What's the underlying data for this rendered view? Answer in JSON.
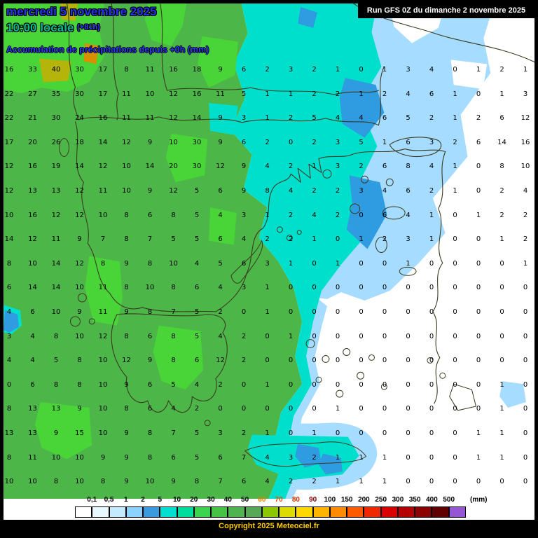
{
  "header": {
    "date_line": "mercredi 5 novembre 2025",
    "time_line": "10:00 locale",
    "time_offset": "(+81h)",
    "subtitle": "Accumulation de précipitations depuis +0h (mm)",
    "run_info": "Run GFS 0Z du dimanche 2 novembre 2025"
  },
  "footer": {
    "copyright": "Copyright 2025 Meteociel.fr"
  },
  "colors": {
    "title_blue": "#2233EE",
    "time_green": "#00BA90",
    "copyright_yellow": "#FFCC00",
    "map_green": "#4CB648",
    "map_bright_green": "#49D437",
    "map_cyan": "#00DFCC",
    "map_light_blue": "#A5DCFF",
    "map_blue": "#2F9BE0",
    "map_olive": "#B4B40A"
  },
  "legend": {
    "unit": "(mm)",
    "labels": [
      "0,1",
      "0,5",
      "1",
      "2",
      "5",
      "10",
      "20",
      "30",
      "40",
      "50",
      "60",
      "70",
      "80",
      "90",
      "100",
      "150",
      "200",
      "250",
      "300",
      "350",
      "400",
      "500"
    ],
    "label_colors": [
      "#000000",
      "#000000",
      "#000000",
      "#000000",
      "#000000",
      "#000000",
      "#000000",
      "#000000",
      "#000000",
      "#000000",
      "#E08000",
      "#E05000",
      "#D03000",
      "#800000",
      "#000000",
      "#000000",
      "#000000",
      "#000000",
      "#000000",
      "#000000",
      "#000000",
      "#000000"
    ],
    "swatch_colors": [
      "#FFFFFF",
      "#E8F8FF",
      "#C4EAFF",
      "#8CD2FF",
      "#3A9AE0",
      "#00DFD0",
      "#00DC9C",
      "#3CD44E",
      "#46C246",
      "#4FB44F",
      "#57A857",
      "#8CC800",
      "#DCDC00",
      "#FFD800",
      "#FFB400",
      "#FF8C00",
      "#FF5A00",
      "#F02800",
      "#D80000",
      "#B40000",
      "#8C0000",
      "#600000",
      "#9655D2"
    ]
  },
  "map": {
    "grid_mm": [
      [
        16,
        33,
        40,
        30,
        17,
        8,
        11,
        16,
        18,
        9,
        6,
        2,
        3,
        2,
        1,
        0,
        1,
        3,
        4,
        0,
        1,
        2,
        1
      ],
      [
        22,
        27,
        35,
        30,
        17,
        11,
        10,
        12,
        16,
        11,
        5,
        1,
        1,
        2,
        2,
        1,
        2,
        4,
        6,
        1,
        0,
        1,
        3
      ],
      [
        22,
        21,
        30,
        24,
        16,
        11,
        11,
        12,
        14,
        9,
        3,
        1,
        2,
        5,
        4,
        4,
        6,
        5,
        2,
        1,
        2,
        6,
        12
      ],
      [
        17,
        20,
        26,
        18,
        14,
        12,
        9,
        10,
        30,
        9,
        6,
        2,
        0,
        2,
        3,
        5,
        1,
        6,
        3,
        2,
        6,
        14,
        16
      ],
      [
        12,
        16,
        19,
        14,
        12,
        10,
        14,
        20,
        30,
        12,
        9,
        4,
        2,
        1,
        3,
        2,
        6,
        8,
        4,
        1,
        0,
        8,
        10
      ],
      [
        12,
        13,
        13,
        12,
        11,
        10,
        9,
        12,
        5,
        6,
        9,
        8,
        4,
        2,
        2,
        3,
        4,
        6,
        2,
        1,
        0,
        2,
        4
      ],
      [
        10,
        16,
        12,
        12,
        10,
        8,
        6,
        8,
        5,
        4,
        3,
        1,
        2,
        4,
        2,
        0,
        6,
        4,
        1,
        0,
        1,
        2,
        2
      ],
      [
        14,
        12,
        11,
        9,
        7,
        8,
        7,
        5,
        5,
        6,
        4,
        2,
        2,
        1,
        0,
        1,
        2,
        3,
        1,
        0,
        0,
        1,
        2
      ],
      [
        8,
        10,
        14,
        12,
        8,
        9,
        8,
        10,
        4,
        5,
        6,
        3,
        1,
        0,
        1,
        0,
        0,
        1,
        0,
        0,
        0,
        0,
        1
      ],
      [
        6,
        14,
        14,
        10,
        11,
        8,
        10,
        8,
        6,
        4,
        3,
        1,
        0,
        0,
        0,
        0,
        0,
        0,
        0,
        0,
        0,
        0,
        0
      ],
      [
        4,
        6,
        10,
        9,
        11,
        9,
        8,
        7,
        5,
        2,
        0,
        1,
        0,
        0,
        0,
        0,
        0,
        0,
        0,
        0,
        0,
        0,
        0
      ],
      [
        3,
        4,
        8,
        10,
        12,
        8,
        6,
        8,
        5,
        4,
        2,
        0,
        1,
        0,
        0,
        0,
        0,
        0,
        0,
        0,
        0,
        0,
        0
      ],
      [
        4,
        4,
        5,
        8,
        10,
        12,
        9,
        8,
        6,
        12,
        2,
        0,
        0,
        0,
        0,
        0,
        0,
        0,
        0,
        0,
        0,
        0,
        0
      ],
      [
        0,
        6,
        8,
        8,
        10,
        9,
        6,
        5,
        4,
        2,
        0,
        1,
        0,
        0,
        0,
        0,
        0,
        0,
        0,
        0,
        0,
        1,
        0
      ],
      [
        8,
        13,
        13,
        9,
        10,
        8,
        6,
        4,
        2,
        0,
        0,
        0,
        0,
        0,
        1,
        0,
        0,
        0,
        0,
        0,
        0,
        1,
        0
      ],
      [
        13,
        13,
        9,
        15,
        10,
        9,
        8,
        7,
        5,
        3,
        2,
        1,
        0,
        1,
        0,
        0,
        0,
        0,
        0,
        0,
        1,
        1,
        0
      ],
      [
        8,
        11,
        10,
        10,
        9,
        9,
        8,
        6,
        5,
        6,
        7,
        4,
        3,
        2,
        1,
        1,
        1,
        0,
        0,
        0,
        1,
        1,
        0
      ],
      [
        10,
        10,
        8,
        10,
        8,
        9,
        10,
        9,
        8,
        7,
        6,
        4,
        2,
        2,
        1,
        1,
        1,
        0,
        0,
        0,
        0,
        0,
        0
      ]
    ]
  }
}
